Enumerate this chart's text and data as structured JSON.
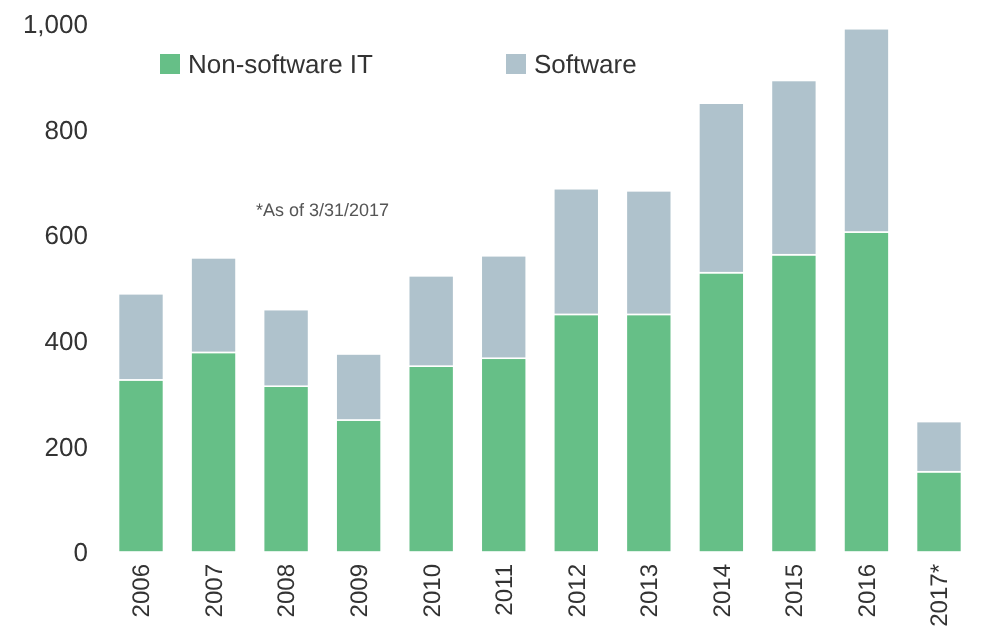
{
  "chart_data": {
    "type": "bar",
    "stacked": true,
    "categories": [
      "2006",
      "2007",
      "2008",
      "2009",
      "2010",
      "2011",
      "2012",
      "2013",
      "2014",
      "2015",
      "2016",
      "2017*"
    ],
    "series": [
      {
        "name": "Non-software IT",
        "color": "#66bf87",
        "values": [
          326,
          378,
          314,
          250,
          352,
          367,
          450,
          450,
          529,
          563,
          606,
          152
        ]
      },
      {
        "name": "Software",
        "color": "#afc2cc",
        "values": [
          163,
          179,
          145,
          125,
          171,
          194,
          238,
          234,
          321,
          330,
          385,
          95
        ]
      }
    ],
    "ylim": [
      0,
      1000
    ],
    "yticks": [
      0,
      200,
      400,
      600,
      800,
      {
        "value": 1000,
        "label": "1,000"
      }
    ],
    "grid": false,
    "legend": "top left",
    "annotations": [
      "*As of 3/31/2017"
    ]
  }
}
